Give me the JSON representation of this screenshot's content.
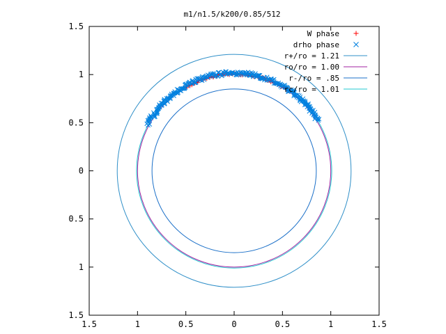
{
  "chart_data": {
    "type": "scatter",
    "title": "m1/n1.5/k200/0.85/512",
    "xlabel": "",
    "ylabel": "",
    "xlim": [
      -1.5,
      1.5
    ],
    "ylim": [
      -1.5,
      1.5
    ],
    "x_ticks": [
      {
        "value": -1.5,
        "label": "1.5"
      },
      {
        "value": -1,
        "label": "1"
      },
      {
        "value": -0.5,
        "label": "0.5"
      },
      {
        "value": 0,
        "label": "0"
      },
      {
        "value": 0.5,
        "label": "0.5"
      },
      {
        "value": 1,
        "label": "1"
      },
      {
        "value": 1.5,
        "label": "1.5"
      }
    ],
    "y_ticks": [
      {
        "value": 1.5,
        "label": "1.5"
      },
      {
        "value": 1,
        "label": "1"
      },
      {
        "value": 0.5,
        "label": "0.5"
      },
      {
        "value": 0,
        "label": "0"
      },
      {
        "value": -0.5,
        "label": "0.5"
      },
      {
        "value": -1,
        "label": "1"
      },
      {
        "value": -1.5,
        "label": "1.5"
      }
    ],
    "grid": false,
    "legend_position": "top-right",
    "legend": [
      {
        "label": "W phase",
        "kind": "plus",
        "color": "#ff0000"
      },
      {
        "label": "drho phase",
        "kind": "cross",
        "color": "#0080e0"
      },
      {
        "label": "r+/ro = 1.21",
        "kind": "line",
        "color": "#2f8fc8"
      },
      {
        "label": "ro/ro = 1.00",
        "kind": "line",
        "color": "#a020a0"
      },
      {
        "label": "r-/ro = .85",
        "kind": "line",
        "color": "#1a6fc8"
      },
      {
        "label": "rc/ro = 1.01",
        "kind": "line",
        "color": "#20c8d0"
      }
    ],
    "series": [
      {
        "name": "W phase",
        "kind": "points",
        "color": "#ff0000",
        "arc": {
          "r": 1.005,
          "start_deg": 55,
          "end_deg": 122,
          "count": 70,
          "jitter": 0.012
        }
      },
      {
        "name": "drho phase",
        "kind": "points",
        "color": "#0080e0",
        "arc": {
          "r": 1.015,
          "start_deg": 31,
          "end_deg": 152,
          "count": 260,
          "jitter": 0.022
        }
      },
      {
        "name": "r+/ro = 1.21",
        "kind": "circle",
        "color": "#2f8fc8",
        "r": 1.21
      },
      {
        "name": "ro/ro = 1.00",
        "kind": "circle",
        "color": "#a020a0",
        "r": 1.0
      },
      {
        "name": "r-/ro = .85",
        "kind": "circle",
        "color": "#1a6fc8",
        "r": 0.85
      },
      {
        "name": "rc/ro = 1.01",
        "kind": "circle",
        "color": "#20c8d0",
        "r": 1.01
      }
    ]
  }
}
